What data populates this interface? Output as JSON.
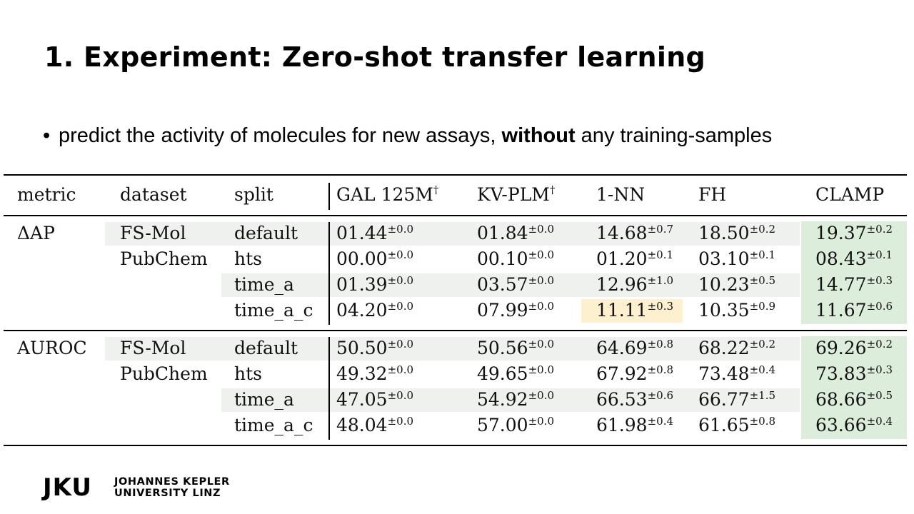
{
  "slide": {
    "title": "1. Experiment: Zero-shot transfer learning",
    "bullet": {
      "before": "predict the activity of molecules for new assays, ",
      "bold": "without",
      "after": " any training-samples"
    }
  },
  "table": {
    "headers": {
      "metric": "metric",
      "dataset": "dataset",
      "split": "split",
      "gal": "GAL 125M",
      "kvplm": "KV-PLM",
      "nn": "1-NN",
      "fh": "FH",
      "clamp": "CLAMP",
      "dagger": "†"
    },
    "groups": [
      {
        "metric": "ΔAP",
        "rows": [
          {
            "dataset": "FS-Mol",
            "split": "default",
            "gal": [
              "01.44",
              "±0.0"
            ],
            "kvplm": [
              "01.84",
              "±0.0"
            ],
            "nn": [
              "14.68",
              "±0.7"
            ],
            "fh": [
              "18.50",
              "±0.2"
            ],
            "clamp": [
              "19.37",
              "±0.2"
            ]
          },
          {
            "dataset": "PubChem",
            "split": "hts",
            "gal": [
              "00.00",
              "±0.0"
            ],
            "kvplm": [
              "00.10",
              "±0.0"
            ],
            "nn": [
              "01.20",
              "±0.1"
            ],
            "fh": [
              "03.10",
              "±0.1"
            ],
            "clamp": [
              "08.43",
              "±0.1"
            ]
          },
          {
            "dataset": "",
            "split": "time_a",
            "gal": [
              "01.39",
              "±0.0"
            ],
            "kvplm": [
              "03.57",
              "±0.0"
            ],
            "nn": [
              "12.96",
              "±1.0"
            ],
            "fh": [
              "10.23",
              "±0.5"
            ],
            "clamp": [
              "14.77",
              "±0.3"
            ]
          },
          {
            "dataset": "",
            "split": "time_a_c",
            "gal": [
              "04.20",
              "±0.0"
            ],
            "kvplm": [
              "07.99",
              "±0.0"
            ],
            "nn": [
              "11.11",
              "±0.3"
            ],
            "fh": [
              "10.35",
              "±0.9"
            ],
            "clamp": [
              "11.67",
              "±0.6"
            ]
          }
        ]
      },
      {
        "metric": "AUROC",
        "rows": [
          {
            "dataset": "FS-Mol",
            "split": "default",
            "gal": [
              "50.50",
              "±0.0"
            ],
            "kvplm": [
              "50.56",
              "±0.0"
            ],
            "nn": [
              "64.69",
              "±0.8"
            ],
            "fh": [
              "68.22",
              "±0.2"
            ],
            "clamp": [
              "69.26",
              "±0.2"
            ]
          },
          {
            "dataset": "PubChem",
            "split": "hts",
            "gal": [
              "49.32",
              "±0.0"
            ],
            "kvplm": [
              "49.65",
              "±0.0"
            ],
            "nn": [
              "67.92",
              "±0.8"
            ],
            "fh": [
              "73.48",
              "±0.4"
            ],
            "clamp": [
              "73.83",
              "±0.3"
            ]
          },
          {
            "dataset": "",
            "split": "time_a",
            "gal": [
              "47.05",
              "±0.0"
            ],
            "kvplm": [
              "54.92",
              "±0.0"
            ],
            "nn": [
              "66.53",
              "±0.6"
            ],
            "fh": [
              "66.77",
              "±1.5"
            ],
            "clamp": [
              "68.66",
              "±0.5"
            ]
          },
          {
            "dataset": "",
            "split": "time_a_c",
            "gal": [
              "48.04",
              "±0.0"
            ],
            "kvplm": [
              "57.00",
              "±0.0"
            ],
            "nn": [
              "61.98",
              "±0.4"
            ],
            "fh": [
              "61.65",
              "±0.8"
            ],
            "clamp": [
              "63.66",
              "±0.4"
            ]
          }
        ]
      }
    ],
    "colors": {
      "highlight_green": "#dceedb",
      "highlight_yellow": "#fdf0cf",
      "row_shade": "#eef1ee"
    }
  },
  "logo": {
    "mark": "JKU",
    "line1": "JOHANNES KEPLER",
    "line2": "UNIVERSITY LINZ"
  }
}
